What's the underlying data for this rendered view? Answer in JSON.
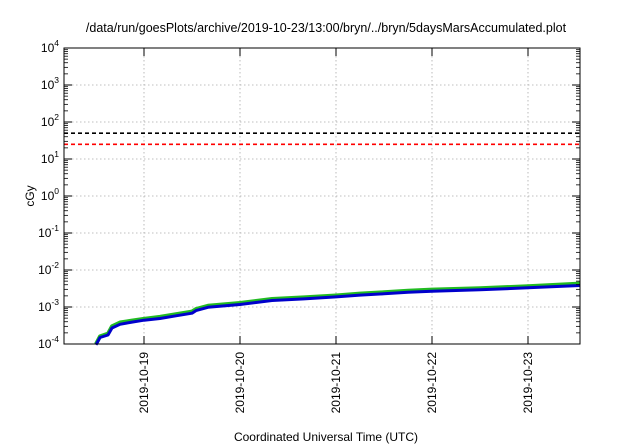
{
  "chart_data": {
    "type": "line",
    "title": "/data/run/goesPlots/archive/2019-10-23/13:00/bryn/../bryn/5daysMarsAccumulated.plot",
    "xlabel": "Coordinated Universal Time (UTC)",
    "ylabel": "cGy",
    "y_scale": "log",
    "ylim": [
      0.0001,
      10000
    ],
    "y_ticks": [
      {
        "base": "10",
        "exp": "-4",
        "value": 0.0001
      },
      {
        "base": "10",
        "exp": "-3",
        "value": 0.001
      },
      {
        "base": "10",
        "exp": "-2",
        "value": 0.01
      },
      {
        "base": "10",
        "exp": "-1",
        "value": 0.1
      },
      {
        "base": "10",
        "exp": "0",
        "value": 1
      },
      {
        "base": "10",
        "exp": "1",
        "value": 10
      },
      {
        "base": "10",
        "exp": "2",
        "value": 100
      },
      {
        "base": "10",
        "exp": "3",
        "value": 1000
      },
      {
        "base": "10",
        "exp": "4",
        "value": 10000
      }
    ],
    "xlim": [
      "2019-10-18T04:00",
      "2019-10-23T13:00"
    ],
    "x_ticks": [
      "2019-10-19",
      "2019-10-20",
      "2019-10-21",
      "2019-10-22",
      "2019-10-23"
    ],
    "grid": true,
    "legend": "none",
    "reference_lines": [
      {
        "y": 50,
        "color": "#000000",
        "style": "dashed"
      },
      {
        "y": 25,
        "color": "#ff0000",
        "style": "dashed"
      }
    ],
    "series": [
      {
        "color": "#22bb22",
        "x": [
          "2019-10-18T12:00",
          "2019-10-18T13:00",
          "2019-10-18T15:00",
          "2019-10-18T16:00",
          "2019-10-18T18:00",
          "2019-10-18T21:00",
          "2019-10-19T00:00",
          "2019-10-19T04:00",
          "2019-10-19T08:00",
          "2019-10-19T12:00",
          "2019-10-19T13:00",
          "2019-10-19T16:00",
          "2019-10-20T00:00",
          "2019-10-20T04:00",
          "2019-10-20T08:00",
          "2019-10-20T16:00",
          "2019-10-21T00:00",
          "2019-10-21T06:00",
          "2019-10-21T12:00",
          "2019-10-21T18:00",
          "2019-10-22T00:00",
          "2019-10-22T12:00",
          "2019-10-23T00:00",
          "2019-10-23T13:00"
        ],
        "y": [
          0.0001,
          0.00016,
          0.00019,
          0.0003,
          0.00038,
          0.00043,
          0.00048,
          0.00054,
          0.00064,
          0.00075,
          0.00088,
          0.00108,
          0.00128,
          0.00145,
          0.00165,
          0.00182,
          0.00205,
          0.0023,
          0.0025,
          0.00275,
          0.00295,
          0.0032,
          0.00365,
          0.0043
        ]
      },
      {
        "color": "#0000cc",
        "x": [
          "2019-10-18T12:00",
          "2019-10-18T13:00",
          "2019-10-18T15:00",
          "2019-10-18T16:00",
          "2019-10-18T18:00",
          "2019-10-18T21:00",
          "2019-10-19T00:00",
          "2019-10-19T04:00",
          "2019-10-19T08:00",
          "2019-10-19T12:00",
          "2019-10-19T13:00",
          "2019-10-19T16:00",
          "2019-10-20T00:00",
          "2019-10-20T04:00",
          "2019-10-20T08:00",
          "2019-10-20T16:00",
          "2019-10-21T00:00",
          "2019-10-21T06:00",
          "2019-10-21T12:00",
          "2019-10-21T18:00",
          "2019-10-22T00:00",
          "2019-10-22T12:00",
          "2019-10-23T00:00",
          "2019-10-23T13:00"
        ],
        "y": [
          9.5e-05,
          0.00015,
          0.000175,
          0.00027,
          0.00034,
          0.00039,
          0.00044,
          0.00049,
          0.00058,
          0.00068,
          0.0008,
          0.00098,
          0.00117,
          0.00132,
          0.0015,
          0.00166,
          0.00187,
          0.0021,
          0.00228,
          0.0025,
          0.00268,
          0.00292,
          0.0033,
          0.0038
        ]
      }
    ]
  }
}
